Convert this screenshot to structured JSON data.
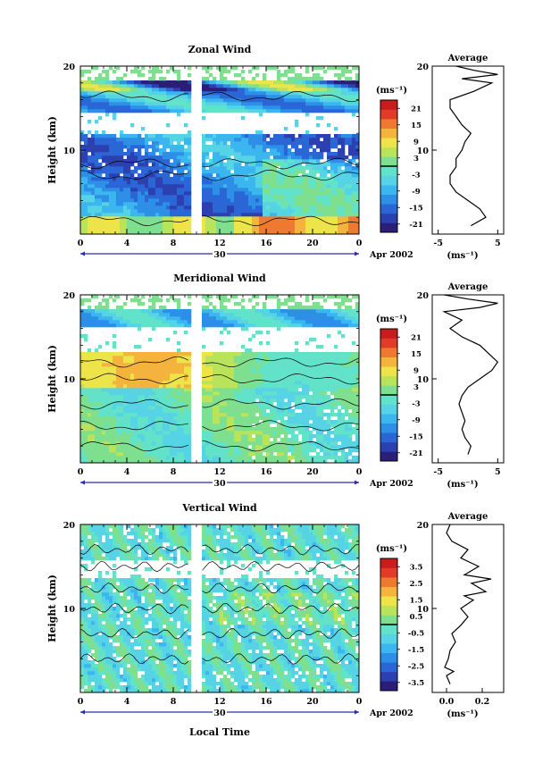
{
  "figure": {
    "xlabel": "Local Time",
    "date_label": "Apr 2002",
    "day_label": "30",
    "x_ticks": [
      "0",
      "4",
      "8",
      "12",
      "16",
      "20",
      "0"
    ],
    "y_ticks": [
      "20",
      "10"
    ],
    "ylabel": "Height (km)"
  },
  "chart_data": [
    {
      "type": "heatmap",
      "title": "Zonal Wind",
      "ylabel": "Height (km)",
      "xlabel": "",
      "x_ticks": [
        "0",
        "4",
        "8",
        "12",
        "16",
        "20",
        "0"
      ],
      "y_ticks": [
        "20",
        "10"
      ],
      "xlim": [
        0,
        24
      ],
      "ylim": [
        0,
        20
      ],
      "colorbar": {
        "unit": "(ms⁻¹)",
        "ticks": [
          "21",
          "15",
          "9",
          "3",
          "-3",
          "-9",
          "-15",
          "-21"
        ],
        "range": [
          -24,
          24
        ]
      },
      "profile": {
        "title": "Average",
        "x_ticks": [
          "-5",
          "5"
        ],
        "xlim": [
          -6,
          6
        ],
        "unit": "(ms⁻¹)",
        "points": [
          [
            0.5,
            1
          ],
          [
            3,
            2
          ],
          [
            2,
            3
          ],
          [
            0,
            4
          ],
          [
            -2,
            5
          ],
          [
            -3,
            6
          ],
          [
            -3,
            7
          ],
          [
            -2,
            8
          ],
          [
            -2,
            9
          ],
          [
            -1,
            10
          ],
          [
            -0.5,
            11
          ],
          [
            0.5,
            12
          ],
          [
            -1,
            13
          ],
          [
            -2,
            14
          ],
          [
            -3,
            15
          ],
          [
            -3,
            16
          ],
          [
            1,
            17
          ],
          [
            4,
            18
          ],
          [
            -1,
            18.5
          ],
          [
            5,
            19
          ],
          [
            1,
            19.5
          ],
          [
            -2,
            20
          ]
        ]
      }
    },
    {
      "type": "heatmap",
      "title": "Meridional Wind",
      "ylabel": "Height (km)",
      "xlabel": "",
      "x_ticks": [
        "0",
        "4",
        "8",
        "12",
        "16",
        "20",
        "0"
      ],
      "y_ticks": [
        "20",
        "10"
      ],
      "xlim": [
        0,
        24
      ],
      "ylim": [
        0,
        20
      ],
      "colorbar": {
        "unit": "(ms⁻¹)",
        "ticks": [
          "21",
          "15",
          "9",
          "3",
          "-3",
          "-9",
          "-15",
          "-21"
        ],
        "range": [
          -24,
          24
        ]
      },
      "profile": {
        "title": "Average",
        "x_ticks": [
          "-5",
          "5"
        ],
        "xlim": [
          -6,
          6
        ],
        "unit": "(ms⁻¹)",
        "points": [
          [
            0,
            1
          ],
          [
            0.5,
            2
          ],
          [
            -0.5,
            3
          ],
          [
            -1,
            4
          ],
          [
            -0.5,
            5
          ],
          [
            -1,
            6
          ],
          [
            -1.5,
            7
          ],
          [
            -1,
            8
          ],
          [
            0,
            9
          ],
          [
            2,
            10
          ],
          [
            4,
            11
          ],
          [
            5,
            12
          ],
          [
            3.5,
            13
          ],
          [
            2,
            14
          ],
          [
            -1,
            15
          ],
          [
            -3,
            16
          ],
          [
            -1,
            17
          ],
          [
            -4,
            18
          ],
          [
            2,
            18.5
          ],
          [
            5,
            19
          ],
          [
            0,
            19.5
          ],
          [
            -4,
            20
          ]
        ]
      }
    },
    {
      "type": "heatmap",
      "title": "Vertical Wind",
      "ylabel": "Height (km)",
      "xlabel": "Local Time",
      "x_ticks": [
        "0",
        "4",
        "8",
        "12",
        "16",
        "20",
        "0"
      ],
      "y_ticks": [
        "20",
        "10"
      ],
      "xlim": [
        0,
        24
      ],
      "ylim": [
        0,
        20
      ],
      "colorbar": {
        "unit": "(ms⁻¹)",
        "ticks": [
          "3.5",
          "2.5",
          "1.5",
          "0.5",
          "-0.5",
          "-1.5",
          "-2.5",
          "-3.5"
        ],
        "range": [
          -4,
          4
        ]
      },
      "profile": {
        "title": "Average",
        "x_ticks": [
          "0.0",
          "0.2"
        ],
        "xlim": [
          -0.08,
          0.32
        ],
        "unit": "(ms⁻¹)",
        "points": [
          [
            0.02,
            1
          ],
          [
            0.0,
            2
          ],
          [
            0.04,
            2.5
          ],
          [
            -0.01,
            3
          ],
          [
            0.01,
            4
          ],
          [
            0.02,
            5
          ],
          [
            0.05,
            6
          ],
          [
            0.03,
            7
          ],
          [
            0.08,
            8
          ],
          [
            0.12,
            9
          ],
          [
            0.08,
            10
          ],
          [
            0.15,
            11
          ],
          [
            0.1,
            11.5
          ],
          [
            0.22,
            12
          ],
          [
            0.14,
            13
          ],
          [
            0.25,
            13.5
          ],
          [
            0.1,
            14
          ],
          [
            0.18,
            15
          ],
          [
            0.08,
            16
          ],
          [
            0.12,
            17
          ],
          [
            0.03,
            18
          ],
          [
            0.0,
            19
          ],
          [
            0.02,
            20
          ]
        ]
      }
    }
  ]
}
